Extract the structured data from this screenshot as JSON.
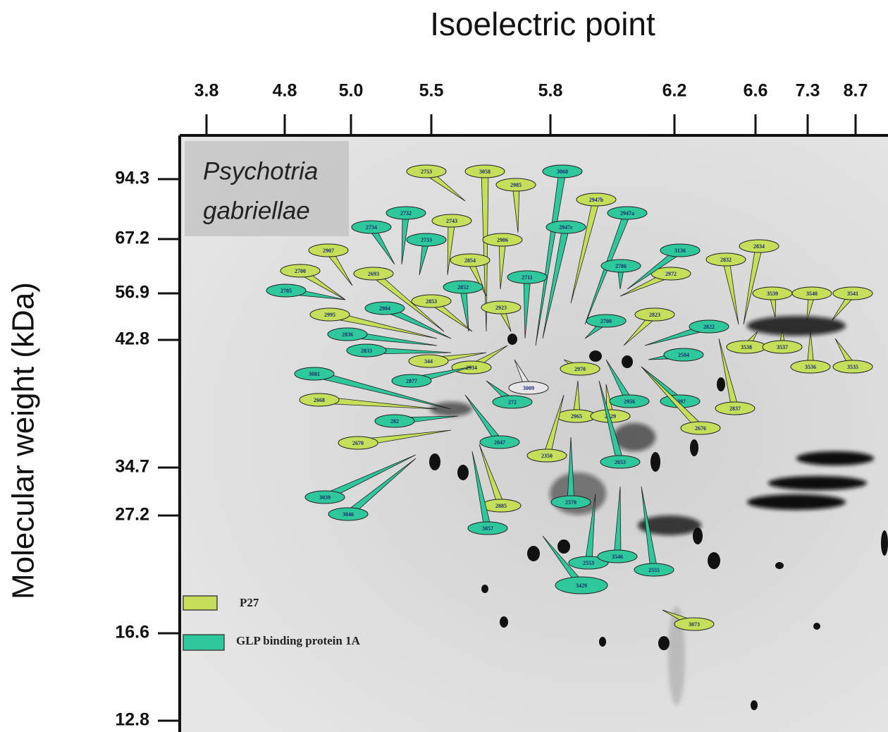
{
  "x_axis": {
    "title": "Isoelectric point",
    "ticks": [
      "3.8",
      "4.8",
      "5.0",
      "5.5",
      "5.8",
      "6.2",
      "6.6",
      "7.3",
      "8.7"
    ]
  },
  "y_axis": {
    "title": "Molecular weight (kDa)",
    "ticks": [
      "94.3",
      "67.2",
      "56.9",
      "42.8",
      "34.7",
      "27.2",
      "16.6",
      "12.8"
    ]
  },
  "species": [
    "Psychotria",
    "gabriellae"
  ],
  "legend": [
    {
      "label": "P27",
      "color": "#c5df5a"
    },
    {
      "label": "GLP binding protein 1A",
      "color": "#2fc79c"
    }
  ],
  "spots": [
    {
      "label": "2753",
      "color": "#c5df5a"
    },
    {
      "label": "3058",
      "color": "#c5df5a"
    },
    {
      "label": "3060",
      "color": "#2fc79c"
    },
    {
      "label": "2985",
      "color": "#c5df5a"
    },
    {
      "label": "2732",
      "color": "#2fc79c"
    },
    {
      "label": "2743",
      "color": "#c5df5a"
    },
    {
      "label": "2734",
      "color": "#2fc79c"
    },
    {
      "label": "2733",
      "color": "#2fc79c"
    },
    {
      "label": "2906",
      "color": "#c5df5a"
    },
    {
      "label": "2947b",
      "color": "#c5df5a"
    },
    {
      "label": "2947a",
      "color": "#2fc79c"
    },
    {
      "label": "2947c",
      "color": "#2fc79c"
    },
    {
      "label": "2907",
      "color": "#c5df5a"
    },
    {
      "label": "2700",
      "color": "#c5df5a"
    },
    {
      "label": "2705",
      "color": "#2fc79c"
    },
    {
      "label": "2693",
      "color": "#c5df5a"
    },
    {
      "label": "2854",
      "color": "#c5df5a"
    },
    {
      "label": "2852",
      "color": "#2fc79c"
    },
    {
      "label": "2711",
      "color": "#2fc79c"
    },
    {
      "label": "2853",
      "color": "#c5df5a"
    },
    {
      "label": "2923",
      "color": "#c5df5a"
    },
    {
      "label": "2904",
      "color": "#2fc79c"
    },
    {
      "label": "2995",
      "color": "#c5df5a"
    },
    {
      "label": "2836",
      "color": "#2fc79c"
    },
    {
      "label": "2833",
      "color": "#2fc79c"
    },
    {
      "label": "344",
      "color": "#c5df5a"
    },
    {
      "label": "2934",
      "color": "#c5df5a"
    },
    {
      "label": "2877",
      "color": "#2fc79c"
    },
    {
      "label": "3009",
      "color": "#e6e6e6"
    },
    {
      "label": "272",
      "color": "#2fc79c"
    },
    {
      "label": "3081",
      "color": "#2fc79c"
    },
    {
      "label": "2668",
      "color": "#c5df5a"
    },
    {
      "label": "282",
      "color": "#2fc79c"
    },
    {
      "label": "2670",
      "color": "#c5df5a"
    },
    {
      "label": "2047",
      "color": "#2fc79c"
    },
    {
      "label": "2970",
      "color": "#c5df5a"
    },
    {
      "label": "2965",
      "color": "#c5df5a"
    },
    {
      "label": "2429",
      "color": "#c5df5a"
    },
    {
      "label": "2350",
      "color": "#c5df5a"
    },
    {
      "label": "2653",
      "color": "#2fc79c"
    },
    {
      "label": "2956",
      "color": "#2fc79c"
    },
    {
      "label": "2397",
      "color": "#2fc79c"
    },
    {
      "label": "2676",
      "color": "#c5df5a"
    },
    {
      "label": "2504",
      "color": "#2fc79c"
    },
    {
      "label": "2786",
      "color": "#2fc79c"
    },
    {
      "label": "2972",
      "color": "#c5df5a"
    },
    {
      "label": "3136",
      "color": "#2fc79c"
    },
    {
      "label": "2823",
      "color": "#c5df5a"
    },
    {
      "label": "2700",
      "color": "#2fc79c"
    },
    {
      "label": "2822",
      "color": "#2fc79c"
    },
    {
      "label": "2832",
      "color": "#c5df5a"
    },
    {
      "label": "2834",
      "color": "#c5df5a"
    },
    {
      "label": "3539",
      "color": "#c5df5a"
    },
    {
      "label": "3540",
      "color": "#c5df5a"
    },
    {
      "label": "3541",
      "color": "#c5df5a"
    },
    {
      "label": "3538",
      "color": "#c5df5a"
    },
    {
      "label": "3537",
      "color": "#c5df5a"
    },
    {
      "label": "3536",
      "color": "#c5df5a"
    },
    {
      "label": "3535",
      "color": "#c5df5a"
    },
    {
      "label": "2837",
      "color": "#c5df5a"
    },
    {
      "label": "3039",
      "color": "#2fc79c"
    },
    {
      "label": "3046",
      "color": "#2fc79c"
    },
    {
      "label": "2885",
      "color": "#c5df5a"
    },
    {
      "label": "3057",
      "color": "#2fc79c"
    },
    {
      "label": "2570",
      "color": "#2fc79c"
    },
    {
      "label": "2553",
      "color": "#2fc79c"
    },
    {
      "label": "3546",
      "color": "#2fc79c"
    },
    {
      "label": "2555",
      "color": "#2fc79c"
    },
    {
      "label": "3429",
      "color": "#2fc79c"
    },
    {
      "label": "3073",
      "color": "#c5df5a"
    }
  ]
}
